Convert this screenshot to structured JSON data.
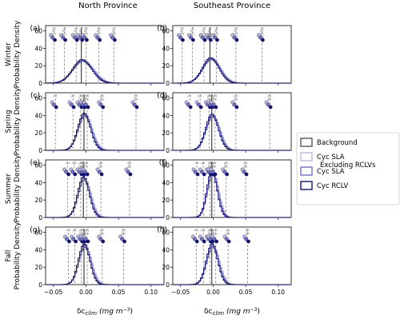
{
  "figure": {
    "col_titles": [
      "North Province",
      "Southeast Province"
    ],
    "row_labels": [
      [
        "Winter",
        "Probability Density"
      ],
      [
        "Spring",
        "Probability Density"
      ],
      [
        "Summer",
        "Probability Density"
      ],
      [
        "Fall",
        "Probability Density"
      ]
    ],
    "xlabel": "δcₙₗᵢₘ (mg  m⁻³)",
    "xlabel_main": "δc",
    "xlabel_sub": "clim",
    "xlabel_units": "(mg  m",
    "xlabel_exp": "−3",
    "xlabel_close": ")",
    "xticks": [
      "−0.05",
      "0.00",
      "0.05",
      "0.10"
    ],
    "yticks": [
      "0",
      "20",
      "40",
      "60"
    ],
    "legend": [
      {
        "label": "Background",
        "color": "#555555"
      },
      {
        "label": "Cyc SLA",
        "label2": "Excluding RCLVs",
        "color": "#b8b8ee"
      },
      {
        "label": "Cyc SLA",
        "color": "#6f6fd6"
      },
      {
        "label": "Cyc RCLV",
        "color": "#10107a"
      }
    ],
    "colors": {
      "background": "#555555",
      "excl": "#b8b8ee",
      "sla": "#6f6fd6",
      "rclv": "#10107a",
      "percentile_line": "#888888",
      "median_line": "#000000"
    }
  },
  "chart_data": [
    {
      "type": "histogram",
      "panel": "(a)",
      "region": "North Province",
      "season": "Winter",
      "x_range": [
        -0.06,
        0.115
      ],
      "ylim": [
        0,
        65
      ],
      "peak_density": 26,
      "center": -0.005,
      "spread": 0.015,
      "percentile_labels": [
        "1%",
        "5%",
        "25%",
        "50%",
        "75%",
        "95%",
        "99%"
      ],
      "percentiles": [
        -0.049,
        -0.033,
        -0.015,
        -0.007,
        0.0,
        0.02,
        0.043
      ]
    },
    {
      "type": "histogram",
      "panel": "(b)",
      "region": "Southeast Province",
      "season": "Winter",
      "x_range": [
        -0.06,
        0.115
      ],
      "ylim": [
        0,
        65
      ],
      "peak_density": 28,
      "center": -0.003,
      "spread": 0.013,
      "percentile_labels": [
        "1%",
        "5%",
        "25%",
        "50%",
        "75%",
        "95%",
        "99%"
      ],
      "percentiles": [
        -0.048,
        -0.032,
        -0.014,
        -0.005,
        0.005,
        0.035,
        0.075
      ]
    },
    {
      "type": "histogram",
      "panel": "(c)",
      "region": "North Province",
      "season": "Spring",
      "x_range": [
        -0.06,
        0.115
      ],
      "ylim": [
        0,
        65
      ],
      "peak_density": 41,
      "center": -0.002,
      "spread": 0.01,
      "percentile_labels": [
        "1",
        "5",
        "25",
        "50",
        "75",
        "95",
        "99"
      ],
      "percentiles": [
        -0.047,
        -0.02,
        -0.008,
        -0.003,
        0.002,
        0.025,
        0.077
      ]
    },
    {
      "type": "histogram",
      "panel": "(d)",
      "region": "Southeast Province",
      "season": "Spring",
      "x_range": [
        -0.06,
        0.115
      ],
      "ylim": [
        0,
        65
      ],
      "peak_density": 40,
      "center": -0.001,
      "spread": 0.01,
      "percentile_labels": [
        "1",
        "5",
        "25",
        "50",
        "75",
        "95",
        "99"
      ],
      "percentiles": [
        -0.036,
        -0.02,
        -0.006,
        -0.002,
        0.003,
        0.035,
        0.087
      ]
    },
    {
      "type": "histogram",
      "panel": "(e)",
      "region": "North Province",
      "season": "Summer",
      "x_range": [
        -0.06,
        0.115
      ],
      "ylim": [
        0,
        65
      ],
      "peak_density": 45,
      "center": -0.003,
      "spread": 0.009,
      "percentile_labels": [
        "1",
        "5",
        "25",
        "50",
        "75",
        "95",
        "99"
      ],
      "percentiles": [
        -0.028,
        -0.018,
        -0.008,
        -0.004,
        0.001,
        0.023,
        0.067
      ]
    },
    {
      "type": "histogram",
      "panel": "(f)",
      "region": "Southeast Province",
      "season": "Summer",
      "x_range": [
        -0.06,
        0.115
      ],
      "ylim": [
        0,
        65
      ],
      "peak_density": 52,
      "center": -0.001,
      "spread": 0.008,
      "percentile_labels": [
        "1",
        "5",
        "25",
        "50",
        "75",
        "95",
        "99"
      ],
      "percentiles": [
        -0.025,
        -0.015,
        -0.005,
        -0.002,
        0.002,
        0.02,
        0.05
      ]
    },
    {
      "type": "histogram",
      "panel": "(g)",
      "region": "North Province",
      "season": "Fall",
      "x_range": [
        -0.06,
        0.115
      ],
      "ylim": [
        0,
        65
      ],
      "peak_density": 45,
      "center": -0.002,
      "spread": 0.009,
      "percentile_labels": [
        "1",
        "5",
        "25",
        "50",
        "75",
        "95",
        "99"
      ],
      "percentiles": [
        -0.027,
        -0.017,
        -0.007,
        -0.003,
        0.002,
        0.025,
        0.058
      ]
    },
    {
      "type": "histogram",
      "panel": "(h)",
      "region": "Southeast Province",
      "season": "Fall",
      "x_range": [
        -0.06,
        0.115
      ],
      "ylim": [
        0,
        65
      ],
      "peak_density": 45,
      "center": -0.001,
      "spread": 0.009,
      "percentile_labels": [
        "1",
        "5",
        "25",
        "50",
        "75",
        "95",
        "99"
      ],
      "percentiles": [
        -0.026,
        -0.015,
        -0.005,
        -0.002,
        0.004,
        0.023,
        0.053
      ]
    }
  ]
}
